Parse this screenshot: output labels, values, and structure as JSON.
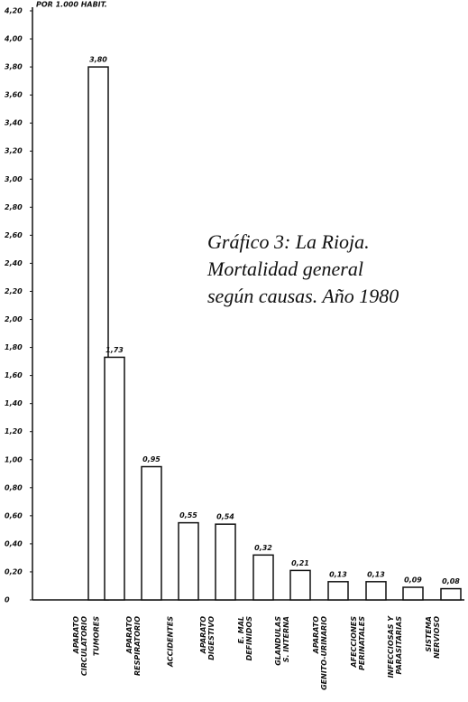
{
  "chart_data": {
    "type": "bar",
    "title": [
      "Gráfico 3: La Rioja.",
      "Mortalidad general",
      "según causas. Año 1980"
    ],
    "ylabel": "POR 1.000 HABIT.",
    "categories": [
      [
        "APARATO",
        "CIRCULATORIO"
      ],
      [
        "TUMORES"
      ],
      [
        "APARATO",
        "RESPIRATORIO"
      ],
      [
        "ACCIDENTES"
      ],
      [
        "APARATO",
        "DIGESTIVO"
      ],
      [
        "E. MAL",
        "DEFINIDOS"
      ],
      [
        "GLANDULAS",
        "S. INTERNA"
      ],
      [
        "APARATO",
        "GENITO-URINARIO"
      ],
      [
        "AFECCIONES",
        "PERINATALES"
      ],
      [
        "INFECCIOSAS Y",
        "PARASITARIAS"
      ],
      [
        "SISTEMA",
        "NERVIOSO"
      ]
    ],
    "values": [
      3.8,
      1.73,
      0.95,
      0.55,
      0.54,
      0.32,
      0.21,
      0.13,
      0.13,
      0.09,
      0.08
    ],
    "value_labels": [
      "3,80",
      "1,73",
      "0,95",
      "0,55",
      "0,54",
      "0,32",
      "0,21",
      "0,13",
      "0,13",
      "0,09",
      "0,08"
    ],
    "color": "#ffffff",
    "ylim": [
      0,
      4.2
    ],
    "yticks": [
      0,
      {
        "value": 0.2,
        "label": "0,20"
      },
      {
        "value": 0.4,
        "label": "0,40"
      },
      {
        "value": 0.6,
        "label": "0,60"
      },
      {
        "value": 0.8,
        "label": "0,80"
      },
      {
        "value": 1.0,
        "label": "1,00"
      },
      {
        "value": 1.2,
        "label": "1,20"
      },
      {
        "value": 1.4,
        "label": "1,40"
      },
      {
        "value": 1.6,
        "label": "1,60"
      },
      {
        "value": 1.8,
        "label": "1,80"
      },
      {
        "value": 2.0,
        "label": "2,00"
      },
      {
        "value": 2.2,
        "label": "2,20"
      },
      {
        "value": 2.4,
        "label": "2,40"
      },
      {
        "value": 2.6,
        "label": "2,60"
      },
      {
        "value": 2.8,
        "label": "2,80"
      },
      {
        "value": 3.0,
        "label": "3,00"
      },
      {
        "value": 3.2,
        "label": "3,20"
      },
      {
        "value": 3.4,
        "label": "3,40"
      },
      {
        "value": 3.6,
        "label": "3,60"
      },
      {
        "value": 3.8,
        "label": "3,80"
      },
      {
        "value": 4.0,
        "label": "4,00"
      },
      {
        "value": 4.2,
        "label": "4,20"
      }
    ],
    "grid": false
  }
}
